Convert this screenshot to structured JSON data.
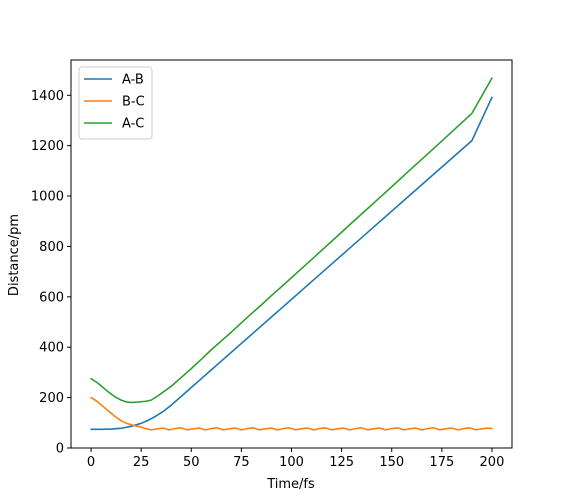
{
  "chart_data": {
    "type": "line",
    "title": "",
    "xlabel": "Time/fs",
    "ylabel": "Distance/pm",
    "xlim": [
      -10,
      210
    ],
    "ylim": [
      0,
      1540
    ],
    "xticks": [
      0,
      25,
      50,
      75,
      100,
      125,
      150,
      175,
      200
    ],
    "yticks": [
      0,
      200,
      400,
      600,
      800,
      1000,
      1200,
      1400
    ],
    "grid": false,
    "legend_position": "top-left",
    "series": [
      {
        "name": "A-B",
        "color": "#1f77b4",
        "points": [
          [
            0,
            74
          ],
          [
            5,
            74
          ],
          [
            10,
            75
          ],
          [
            15,
            78
          ],
          [
            20,
            86
          ],
          [
            25,
            98
          ],
          [
            28,
            108
          ],
          [
            32,
            125
          ],
          [
            36,
            145
          ],
          [
            40,
            170
          ],
          [
            45,
            205
          ],
          [
            50,
            240
          ],
          [
            55,
            275
          ],
          [
            60,
            310
          ],
          [
            65,
            345
          ],
          [
            70,
            380
          ],
          [
            75,
            415
          ],
          [
            80,
            450
          ],
          [
            85,
            485
          ],
          [
            90,
            520
          ],
          [
            95,
            555
          ],
          [
            100,
            590
          ],
          [
            110,
            660
          ],
          [
            120,
            730
          ],
          [
            130,
            800
          ],
          [
            140,
            870
          ],
          [
            150,
            940
          ],
          [
            160,
            1010
          ],
          [
            170,
            1080
          ],
          [
            180,
            1150
          ],
          [
            190,
            1220
          ],
          [
            200,
            1392
          ]
        ]
      },
      {
        "name": "B-C",
        "color": "#ff7f0e",
        "points": [
          [
            0,
            200
          ],
          [
            3,
            185
          ],
          [
            6,
            165
          ],
          [
            9,
            145
          ],
          [
            12,
            125
          ],
          [
            15,
            108
          ],
          [
            18,
            97
          ],
          [
            21,
            90
          ],
          [
            24,
            85
          ],
          [
            27,
            78
          ],
          [
            30,
            72
          ],
          [
            33,
            76
          ],
          [
            36,
            79
          ],
          [
            39,
            72
          ],
          [
            42,
            77
          ],
          [
            45,
            80
          ],
          [
            48,
            72
          ],
          [
            51,
            76
          ],
          [
            54,
            79
          ],
          [
            57,
            72
          ],
          [
            60,
            77
          ],
          [
            63,
            80
          ],
          [
            66,
            72
          ],
          [
            69,
            76
          ],
          [
            72,
            79
          ],
          [
            75,
            72
          ],
          [
            78,
            77
          ],
          [
            81,
            80
          ],
          [
            84,
            72
          ],
          [
            87,
            76
          ],
          [
            90,
            79
          ],
          [
            93,
            72
          ],
          [
            96,
            77
          ],
          [
            99,
            80
          ],
          [
            102,
            72
          ],
          [
            105,
            76
          ],
          [
            108,
            79
          ],
          [
            111,
            72
          ],
          [
            114,
            77
          ],
          [
            117,
            80
          ],
          [
            120,
            72
          ],
          [
            123,
            76
          ],
          [
            126,
            79
          ],
          [
            129,
            72
          ],
          [
            132,
            77
          ],
          [
            135,
            80
          ],
          [
            138,
            72
          ],
          [
            141,
            76
          ],
          [
            144,
            79
          ],
          [
            147,
            72
          ],
          [
            150,
            77
          ],
          [
            153,
            80
          ],
          [
            156,
            72
          ],
          [
            159,
            76
          ],
          [
            162,
            79
          ],
          [
            165,
            72
          ],
          [
            168,
            77
          ],
          [
            171,
            80
          ],
          [
            174,
            72
          ],
          [
            177,
            76
          ],
          [
            180,
            79
          ],
          [
            183,
            72
          ],
          [
            186,
            77
          ],
          [
            189,
            80
          ],
          [
            192,
            72
          ],
          [
            195,
            76
          ],
          [
            198,
            79
          ],
          [
            200,
            77
          ]
        ]
      },
      {
        "name": "A-C",
        "color": "#2ca02c",
        "points": [
          [
            0,
            275
          ],
          [
            3,
            260
          ],
          [
            6,
            240
          ],
          [
            9,
            220
          ],
          [
            12,
            203
          ],
          [
            15,
            190
          ],
          [
            18,
            182
          ],
          [
            21,
            181
          ],
          [
            24,
            183
          ],
          [
            27,
            185
          ],
          [
            30,
            190
          ],
          [
            33,
            205
          ],
          [
            36,
            222
          ],
          [
            40,
            245
          ],
          [
            45,
            280
          ],
          [
            50,
            315
          ],
          [
            55,
            352
          ],
          [
            60,
            390
          ],
          [
            65,
            425
          ],
          [
            70,
            460
          ],
          [
            75,
            497
          ],
          [
            80,
            533
          ],
          [
            85,
            568
          ],
          [
            90,
            605
          ],
          [
            95,
            640
          ],
          [
            100,
            676
          ],
          [
            110,
            748
          ],
          [
            120,
            820
          ],
          [
            130,
            893
          ],
          [
            140,
            965
          ],
          [
            150,
            1037
          ],
          [
            160,
            1110
          ],
          [
            170,
            1182
          ],
          [
            180,
            1255
          ],
          [
            190,
            1328
          ],
          [
            200,
            1468
          ]
        ]
      }
    ]
  }
}
